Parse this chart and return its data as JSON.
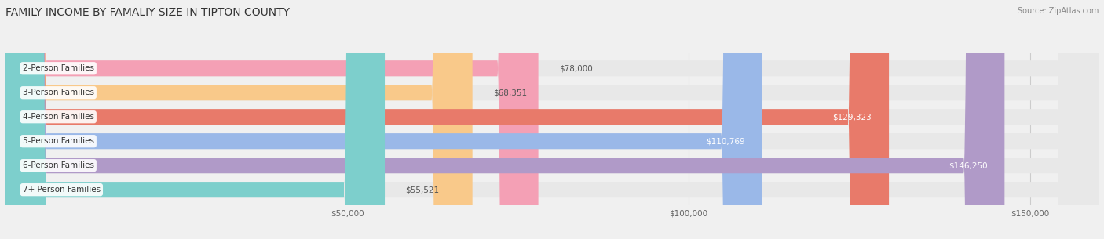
{
  "title": "FAMILY INCOME BY FAMALIY SIZE IN TIPTON COUNTY",
  "source": "Source: ZipAtlas.com",
  "categories": [
    "2-Person Families",
    "3-Person Families",
    "4-Person Families",
    "5-Person Families",
    "6-Person Families",
    "7+ Person Families"
  ],
  "values": [
    78000,
    68351,
    129323,
    110769,
    146250,
    55521
  ],
  "bar_colors": [
    "#f4a0b5",
    "#f9c98a",
    "#e87a6a",
    "#9ab8e8",
    "#b09ac8",
    "#7dcfcc"
  ],
  "bg_color": "#f0f0f0",
  "bar_bg_color": "#e8e8e8",
  "xlim": [
    0,
    160000
  ],
  "xticks": [
    0,
    50000,
    100000,
    150000
  ],
  "xtick_labels": [
    "",
    "$50,000",
    "$100,000",
    "$150,000"
  ],
  "title_fontsize": 10,
  "label_fontsize": 7.5,
  "value_fontsize": 7.5,
  "bar_height": 0.65,
  "figsize": [
    14.06,
    3.05
  ],
  "dpi": 100
}
